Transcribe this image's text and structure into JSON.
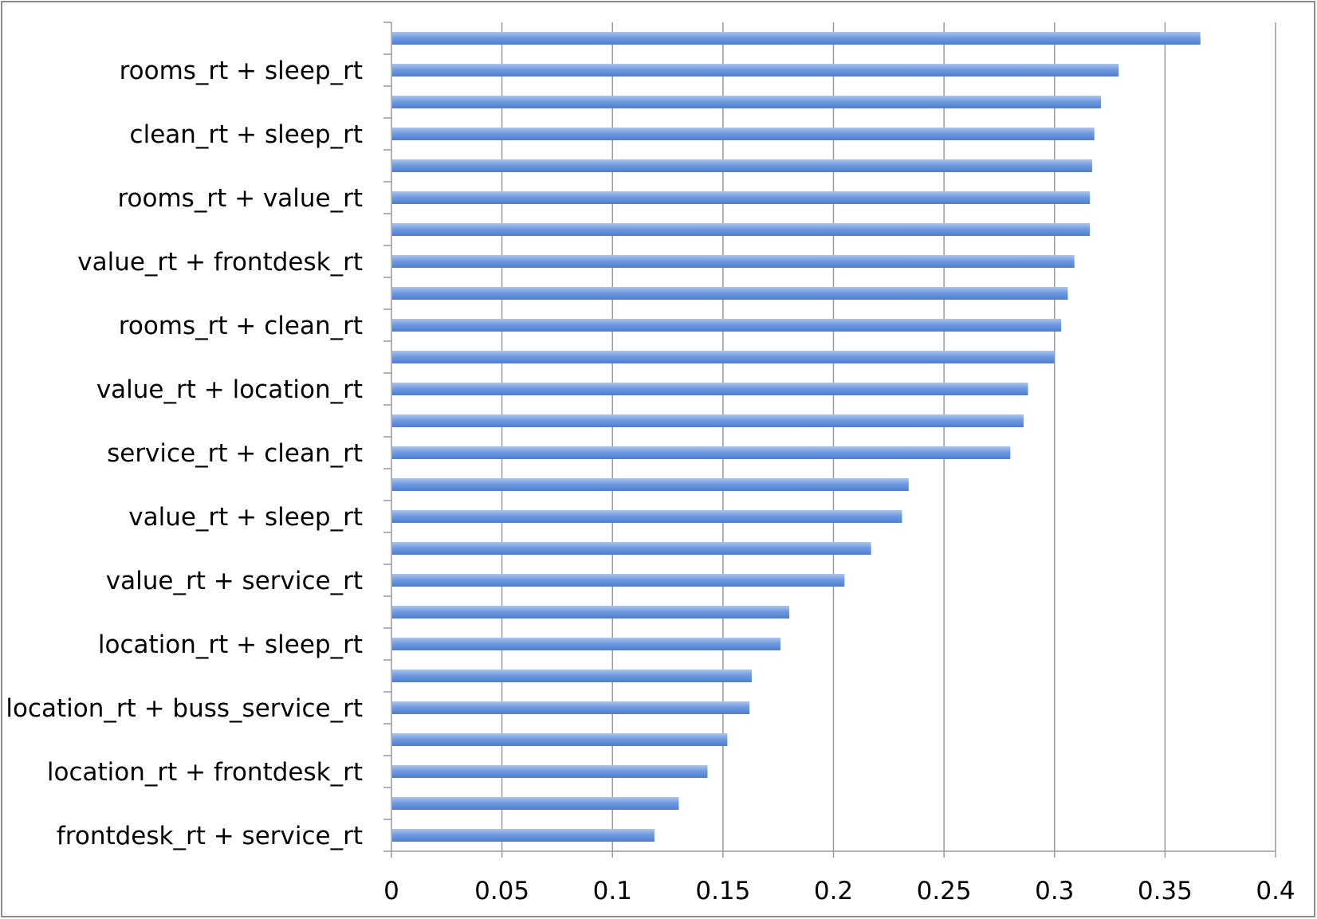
{
  "chart_data": {
    "type": "bar",
    "orientation": "horizontal",
    "title": "",
    "xlabel": "",
    "ylabel": "",
    "xlim": [
      0,
      0.4
    ],
    "x_ticks": [
      "0",
      "0.05",
      "0.1",
      "0.15",
      "0.2",
      "0.25",
      "0.3",
      "0.35",
      "0.4"
    ],
    "grid": true,
    "legend": "none",
    "bar_color": "#6f9be2",
    "grid_color": "#9a9a9a",
    "categories": [
      "",
      "rooms_rt + sleep_rt",
      "",
      "clean_rt + sleep_rt",
      "",
      "rooms_rt + value_rt",
      "",
      "value_rt + frontdesk_rt",
      "",
      "rooms_rt + clean_rt",
      "",
      "value_rt + location_rt",
      "",
      "service_rt + clean_rt",
      "",
      "value_rt + sleep_rt",
      "",
      "value_rt + service_rt",
      "",
      "location_rt + sleep_rt",
      "",
      "location_rt + buss_service_rt",
      "",
      "location_rt + frontdesk_rt",
      "",
      "frontdesk_rt + service_rt"
    ],
    "values": [
      0.366,
      0.329,
      0.321,
      0.318,
      0.317,
      0.316,
      0.316,
      0.309,
      0.306,
      0.303,
      0.3,
      0.288,
      0.286,
      0.28,
      0.234,
      0.231,
      0.217,
      0.205,
      0.18,
      0.176,
      0.163,
      0.162,
      0.152,
      0.143,
      0.13,
      0.119
    ]
  }
}
